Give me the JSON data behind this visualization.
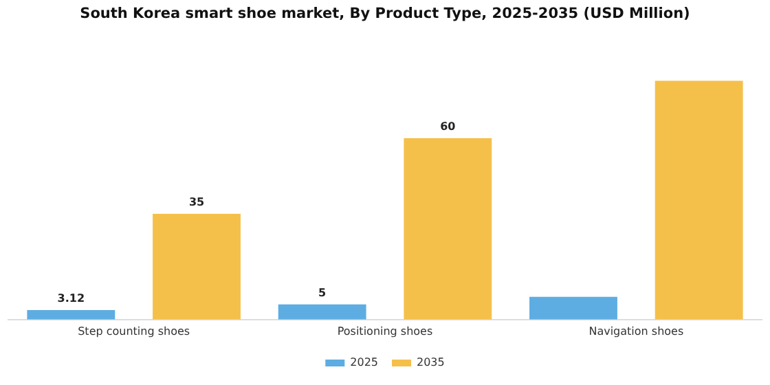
{
  "chart_data": {
    "type": "bar",
    "title": "South Korea smart shoe market, By Product Type, 2025-2035 (USD Million)",
    "categories": [
      "Step counting shoes",
      "Positioning shoes",
      "Navigation shoes"
    ],
    "series": [
      {
        "name": "2025",
        "color": "#5dade2",
        "values": [
          3.12,
          5,
          7.5
        ],
        "value_labels": [
          "3.12",
          "5",
          null
        ]
      },
      {
        "name": "2035",
        "color": "#f5c04a",
        "values": [
          35,
          60,
          79
        ],
        "value_labels": [
          "35",
          "60",
          null
        ]
      }
    ],
    "tick_labels": "x",
    "grid": false,
    "legend": "bottom"
  }
}
